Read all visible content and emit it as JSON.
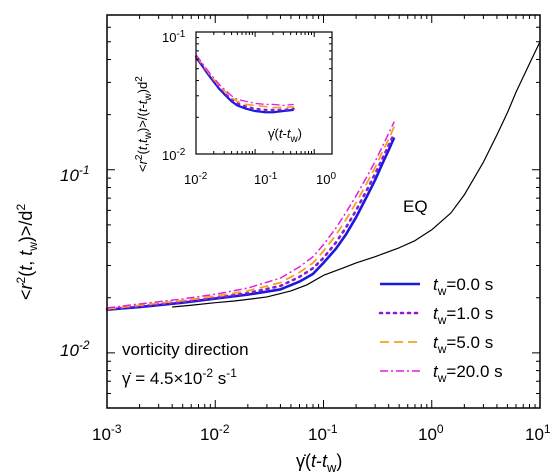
{
  "chart_data": [
    {
      "type": "line",
      "xscale": "log",
      "yscale": "log",
      "xlim": [
        0.001,
        10
      ],
      "ylim": [
        0.005,
        0.7
      ],
      "xticks": [
        0.001,
        0.01,
        0.1,
        1,
        10
      ],
      "yticks": [
        0.01,
        0.1
      ],
      "xtick_labels": [
        {
          "base": "10",
          "exp": "-3"
        },
        {
          "base": "10",
          "exp": "-2"
        },
        {
          "base": "10",
          "exp": "-1"
        },
        {
          "base": "10",
          "exp": "0"
        },
        {
          "base": "10",
          "exp": "1"
        }
      ],
      "ytick_labels": [
        {
          "base": "10",
          "exp": "-2"
        },
        {
          "base": "10",
          "exp": "-1"
        }
      ],
      "xlabel": {
        "pre": "γ̇(",
        "t": "t",
        "dash": "-",
        "t2": "t",
        "sub": "w",
        "post": ")"
      },
      "ylabel": {
        "open": "<",
        "r": "r",
        "sup": "2",
        "args1": "(",
        "t": "t",
        "comma": ", ",
        "t2": "t",
        "sub": "w",
        "args2": ")>/d",
        "sup2": "2"
      },
      "legend_position": "lower-right",
      "annotations": {
        "eq": "EQ",
        "direction": "vorticity direction",
        "rate_prefix": "γ̇ = 4.5×10",
        "rate_exp": "-2",
        "rate_unit": " s",
        "rate_unit_exp": "-1"
      },
      "series": [
        {
          "name": "0.0 s",
          "tw": "0.0",
          "color": "#1a1adb",
          "style": "solid",
          "width": 2.6,
          "x": [
            0.001,
            0.002,
            0.005,
            0.01,
            0.02,
            0.04,
            0.06,
            0.08,
            0.1,
            0.13,
            0.16,
            0.2,
            0.25,
            0.3,
            0.35,
            0.4,
            0.45
          ],
          "y": [
            0.0172,
            0.0178,
            0.0188,
            0.0198,
            0.0208,
            0.0222,
            0.0245,
            0.027,
            0.031,
            0.037,
            0.044,
            0.055,
            0.071,
            0.088,
            0.108,
            0.128,
            0.15
          ]
        },
        {
          "name": "1.0 s",
          "tw": "1.0",
          "color": "#8c1ad4",
          "style": "dotted",
          "width": 2.6,
          "x": [
            0.001,
            0.002,
            0.005,
            0.01,
            0.02,
            0.04,
            0.06,
            0.08,
            0.1,
            0.13,
            0.16,
            0.2,
            0.25,
            0.3,
            0.35,
            0.4,
            0.45
          ],
          "y": [
            0.0173,
            0.018,
            0.019,
            0.02,
            0.0212,
            0.0232,
            0.026,
            0.029,
            0.033,
            0.04,
            0.048,
            0.06,
            0.077,
            0.095,
            0.115,
            0.136,
            0.158
          ]
        },
        {
          "name": "5.0 s",
          "tw": "5.0",
          "color": "#f2a41f",
          "style": "dashed",
          "width": 1.8,
          "x": [
            0.001,
            0.002,
            0.005,
            0.01,
            0.02,
            0.04,
            0.06,
            0.08,
            0.1,
            0.13,
            0.16,
            0.2,
            0.25,
            0.3,
            0.35,
            0.4,
            0.45
          ],
          "y": [
            0.0174,
            0.0182,
            0.0193,
            0.0204,
            0.0218,
            0.0242,
            0.0275,
            0.031,
            0.036,
            0.044,
            0.053,
            0.066,
            0.084,
            0.103,
            0.125,
            0.147,
            0.172
          ]
        },
        {
          "name": "20.0 s",
          "tw": "20.0",
          "color": "#e81ae8",
          "style": "dashdot",
          "width": 1.5,
          "x": [
            0.001,
            0.002,
            0.005,
            0.01,
            0.02,
            0.04,
            0.06,
            0.08,
            0.1,
            0.13,
            0.16,
            0.2,
            0.25,
            0.3,
            0.35,
            0.4,
            0.45
          ],
          "y": [
            0.0176,
            0.0185,
            0.0197,
            0.0209,
            0.0226,
            0.0256,
            0.0295,
            0.0335,
            0.039,
            0.048,
            0.058,
            0.072,
            0.091,
            0.111,
            0.134,
            0.158,
            0.183
          ]
        },
        {
          "name": "EQ",
          "color": "#000000",
          "style": "solid",
          "width": 1.2,
          "x": [
            0.004,
            0.006,
            0.01,
            0.015,
            0.02,
            0.03,
            0.05,
            0.07,
            0.1,
            0.15,
            0.2,
            0.3,
            0.5,
            0.7,
            1.0,
            1.5,
            2,
            3,
            4,
            5,
            6,
            8,
            10
          ],
          "y": [
            0.0178,
            0.0182,
            0.0188,
            0.0192,
            0.0196,
            0.0202,
            0.0218,
            0.0235,
            0.0265,
            0.029,
            0.031,
            0.0335,
            0.0375,
            0.041,
            0.047,
            0.058,
            0.073,
            0.11,
            0.155,
            0.205,
            0.265,
            0.38,
            0.5
          ]
        }
      ]
    },
    {
      "type": "line",
      "inset": true,
      "xscale": "log",
      "yscale": "log",
      "xlim": [
        0.01,
        2
      ],
      "ylim": [
        0.01,
        0.1
      ],
      "xticks": [
        0.01,
        0.1,
        1
      ],
      "yticks": [
        0.01,
        0.1
      ],
      "xtick_labels": [
        {
          "base": "10",
          "exp": "-2"
        },
        {
          "base": "10",
          "exp": "-1"
        },
        {
          "base": "10",
          "exp": "0"
        }
      ],
      "ytick_labels": [
        {
          "base": "10",
          "exp": "-2"
        },
        {
          "base": "10",
          "exp": "-1"
        }
      ],
      "xlabel": {
        "pre": "γ̇(",
        "t": "t",
        "dash": "-",
        "t2": "t",
        "sub": "w",
        "post": ")"
      },
      "ylabel": {
        "open": "<",
        "r": "r",
        "sup": "2",
        "args1": "(",
        "t": "t",
        "comma": ",",
        "t2": "t",
        "sub": "w",
        "args2": ")>/(",
        "t3": "t",
        "dash": "-",
        "t4": "t",
        "sub2": "w",
        "close": ")d",
        "sup3": "2"
      },
      "series": [
        {
          "name": "0.0 s",
          "color": "#1a1adb",
          "style": "solid",
          "width": 2.2,
          "x": [
            0.01,
            0.013,
            0.016,
            0.02,
            0.025,
            0.03,
            0.04,
            0.05,
            0.07,
            0.1,
            0.15,
            0.2,
            0.3,
            0.45
          ],
          "y": [
            0.062,
            0.052,
            0.045,
            0.039,
            0.034,
            0.031,
            0.027,
            0.025,
            0.0235,
            0.0225,
            0.022,
            0.022,
            0.0225,
            0.023
          ]
        },
        {
          "name": "1.0 s",
          "color": "#8c1ad4",
          "style": "dotted",
          "width": 2.2,
          "x": [
            0.01,
            0.013,
            0.016,
            0.02,
            0.025,
            0.03,
            0.04,
            0.05,
            0.07,
            0.1,
            0.15,
            0.2,
            0.3,
            0.45
          ],
          "y": [
            0.063,
            0.053,
            0.046,
            0.04,
            0.035,
            0.032,
            0.028,
            0.026,
            0.0245,
            0.0235,
            0.023,
            0.023,
            0.023,
            0.0235
          ]
        },
        {
          "name": "5.0 s",
          "color": "#f2a41f",
          "style": "dashed",
          "width": 1.6,
          "x": [
            0.01,
            0.013,
            0.016,
            0.02,
            0.025,
            0.03,
            0.04,
            0.05,
            0.07,
            0.1,
            0.15,
            0.2,
            0.3,
            0.45
          ],
          "y": [
            0.064,
            0.054,
            0.047,
            0.041,
            0.036,
            0.033,
            0.029,
            0.027,
            0.0255,
            0.025,
            0.0245,
            0.024,
            0.024,
            0.0245
          ]
        },
        {
          "name": "20.0 s",
          "color": "#e81ae8",
          "style": "dashdot",
          "width": 1.3,
          "x": [
            0.01,
            0.013,
            0.016,
            0.02,
            0.025,
            0.03,
            0.04,
            0.05,
            0.07,
            0.1,
            0.15,
            0.2,
            0.3,
            0.45
          ],
          "y": [
            0.065,
            0.055,
            0.048,
            0.042,
            0.037,
            0.034,
            0.03,
            0.028,
            0.027,
            0.026,
            0.0255,
            0.0255,
            0.025,
            0.0255
          ]
        }
      ]
    }
  ]
}
